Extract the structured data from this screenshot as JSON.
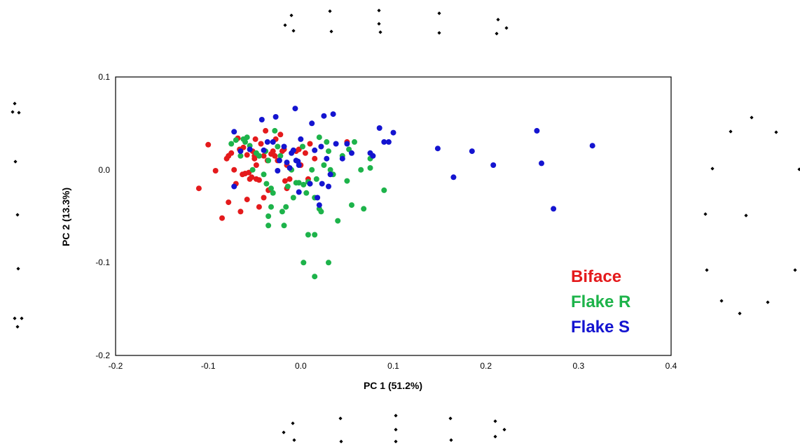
{
  "chart_data": {
    "type": "scatter",
    "xlabel": "PC 1 (51.2%)",
    "ylabel": "PC 2 (13.3%)",
    "xlim": [
      -0.2,
      0.4
    ],
    "ylim": [
      -0.2,
      0.1
    ],
    "x_ticks": [
      "-0.2",
      "-0.1",
      "0.0",
      "0.1",
      "0.2",
      "0.3",
      "0.4"
    ],
    "y_ticks": [
      "-0.2",
      "-0.1",
      "0.0",
      "0.1"
    ],
    "grid": false,
    "legend": {
      "placement": "bottom-right",
      "style": "colored text"
    },
    "series": [
      {
        "name": "Biface",
        "color": "#e41a1c",
        "points": [
          [
            -0.11,
            -0.02
          ],
          [
            -0.1,
            0.027
          ],
          [
            -0.092,
            -0.001
          ],
          [
            -0.085,
            -0.052
          ],
          [
            -0.08,
            0.012
          ],
          [
            -0.078,
            0.015
          ],
          [
            -0.078,
            -0.035
          ],
          [
            -0.075,
            0.018
          ],
          [
            -0.072,
            0.0
          ],
          [
            -0.07,
            -0.015
          ],
          [
            -0.068,
            0.034
          ],
          [
            -0.066,
            0.022
          ],
          [
            -0.063,
            -0.005
          ],
          [
            -0.062,
            0.024
          ],
          [
            -0.06,
            -0.004
          ],
          [
            -0.058,
            0.016
          ],
          [
            -0.056,
            -0.003
          ],
          [
            -0.055,
            -0.01
          ],
          [
            -0.053,
            -0.008
          ],
          [
            -0.052,
            0.02
          ],
          [
            -0.05,
            0.015
          ],
          [
            -0.049,
            0.033
          ],
          [
            -0.048,
            -0.01
          ],
          [
            -0.045,
            -0.011
          ],
          [
            -0.048,
            0.005
          ],
          [
            -0.05,
            0.012
          ],
          [
            -0.043,
            0.028
          ],
          [
            -0.04,
            0.015
          ],
          [
            -0.04,
            -0.03
          ],
          [
            -0.038,
            0.042
          ],
          [
            -0.036,
            0.01
          ],
          [
            -0.035,
            -0.022
          ],
          [
            -0.032,
            0.017
          ],
          [
            -0.03,
            0.02
          ],
          [
            -0.028,
            0.015
          ],
          [
            -0.027,
            0.033
          ],
          [
            -0.025,
            0.01
          ],
          [
            -0.022,
            0.038
          ],
          [
            -0.02,
            0.02
          ],
          [
            -0.018,
            0.022
          ],
          [
            -0.017,
            -0.012
          ],
          [
            -0.015,
            0.005
          ],
          [
            -0.012,
            -0.01
          ],
          [
            -0.058,
            -0.032
          ],
          [
            -0.065,
            -0.045
          ],
          [
            -0.045,
            -0.04
          ],
          [
            -0.015,
            -0.02
          ],
          [
            -0.005,
            0.02
          ],
          [
            -0.002,
            0.022
          ],
          [
            0.0,
            0.005
          ],
          [
            0.005,
            0.018
          ],
          [
            0.008,
            -0.01
          ],
          [
            0.01,
            0.028
          ],
          [
            0.015,
            0.012
          ],
          [
            0.05,
            0.03
          ]
        ]
      },
      {
        "name": "Flake R",
        "color": "#1db34a",
        "points": [
          [
            -0.075,
            0.028
          ],
          [
            -0.07,
            0.032
          ],
          [
            -0.065,
            0.015
          ],
          [
            -0.062,
            0.033
          ],
          [
            -0.06,
            0.03
          ],
          [
            -0.058,
            0.035
          ],
          [
            -0.055,
            0.026
          ],
          [
            -0.052,
            0.0
          ],
          [
            -0.048,
            0.018
          ],
          [
            -0.045,
            0.015
          ],
          [
            -0.04,
            -0.005
          ],
          [
            -0.038,
            0.02
          ],
          [
            -0.037,
            -0.015
          ],
          [
            -0.035,
            0.01
          ],
          [
            -0.035,
            -0.05
          ],
          [
            -0.035,
            -0.06
          ],
          [
            -0.032,
            -0.02
          ],
          [
            -0.032,
            -0.04
          ],
          [
            -0.03,
            -0.025
          ],
          [
            -0.028,
            0.042
          ],
          [
            -0.025,
            0.025
          ],
          [
            -0.022,
            0.015
          ],
          [
            -0.02,
            -0.045
          ],
          [
            -0.018,
            -0.06
          ],
          [
            -0.016,
            -0.04
          ],
          [
            -0.014,
            -0.018
          ],
          [
            -0.01,
            0.0
          ],
          [
            -0.008,
            -0.03
          ],
          [
            -0.005,
            -0.014
          ],
          [
            -0.002,
            -0.014
          ],
          [
            0.002,
            0.025
          ],
          [
            0.003,
            -0.016
          ],
          [
            0.006,
            -0.025
          ],
          [
            0.008,
            -0.013
          ],
          [
            0.01,
            -0.015
          ],
          [
            0.012,
            0.0
          ],
          [
            0.015,
            -0.03
          ],
          [
            0.017,
            -0.01
          ],
          [
            0.02,
            -0.042
          ],
          [
            0.022,
            -0.045
          ],
          [
            0.025,
            0.005
          ],
          [
            0.028,
            0.03
          ],
          [
            0.03,
            0.02
          ],
          [
            0.032,
            0.0
          ],
          [
            0.035,
            -0.005
          ],
          [
            0.04,
            -0.055
          ],
          [
            0.045,
            0.015
          ],
          [
            0.05,
            -0.012
          ],
          [
            0.052,
            0.022
          ],
          [
            0.055,
            -0.038
          ],
          [
            0.058,
            0.03
          ],
          [
            0.065,
            0.0
          ],
          [
            0.068,
            -0.042
          ],
          [
            0.075,
            0.012
          ],
          [
            0.075,
            0.002
          ],
          [
            0.09,
            -0.022
          ],
          [
            0.008,
            -0.07
          ],
          [
            0.015,
            -0.07
          ],
          [
            0.003,
            -0.1
          ],
          [
            0.03,
            -0.1
          ],
          [
            0.015,
            -0.115
          ],
          [
            0.02,
            0.035
          ]
        ]
      },
      {
        "name": "Flake S",
        "color": "#1414d0",
        "points": [
          [
            -0.072,
            0.041
          ],
          [
            -0.072,
            -0.018
          ],
          [
            -0.065,
            0.02
          ],
          [
            -0.055,
            0.022
          ],
          [
            -0.042,
            0.054
          ],
          [
            -0.04,
            0.021
          ],
          [
            -0.036,
            0.03
          ],
          [
            -0.03,
            0.03
          ],
          [
            -0.027,
            0.057
          ],
          [
            -0.025,
            -0.001
          ],
          [
            -0.023,
            0.01
          ],
          [
            -0.018,
            0.025
          ],
          [
            -0.015,
            0.008
          ],
          [
            -0.012,
            0.002
          ],
          [
            -0.01,
            0.018
          ],
          [
            -0.008,
            0.021
          ],
          [
            -0.005,
            0.01
          ],
          [
            -0.002,
            -0.024
          ],
          [
            -0.003,
            0.009
          ],
          [
            -0.002,
            0.005
          ],
          [
            -0.006,
            0.066
          ],
          [
            0.0,
            0.033
          ],
          [
            0.01,
            -0.015
          ],
          [
            0.012,
            0.05
          ],
          [
            0.015,
            0.021
          ],
          [
            0.018,
            -0.03
          ],
          [
            0.02,
            -0.038
          ],
          [
            0.022,
            0.025
          ],
          [
            0.023,
            -0.015
          ],
          [
            0.025,
            0.058
          ],
          [
            0.028,
            0.012
          ],
          [
            0.03,
            -0.018
          ],
          [
            0.032,
            -0.005
          ],
          [
            0.035,
            0.06
          ],
          [
            0.038,
            0.028
          ],
          [
            0.045,
            0.012
          ],
          [
            0.05,
            0.028
          ],
          [
            0.055,
            0.018
          ],
          [
            0.075,
            0.018
          ],
          [
            0.078,
            0.015
          ],
          [
            0.085,
            0.045
          ],
          [
            0.09,
            0.03
          ],
          [
            0.095,
            0.03
          ],
          [
            0.1,
            0.04
          ],
          [
            0.148,
            0.023
          ],
          [
            0.165,
            -0.008
          ],
          [
            0.185,
            0.02
          ],
          [
            0.208,
            0.005
          ],
          [
            0.255,
            0.042
          ],
          [
            0.26,
            0.007
          ],
          [
            0.273,
            -0.042
          ],
          [
            0.315,
            0.026
          ]
        ]
      }
    ]
  }
}
